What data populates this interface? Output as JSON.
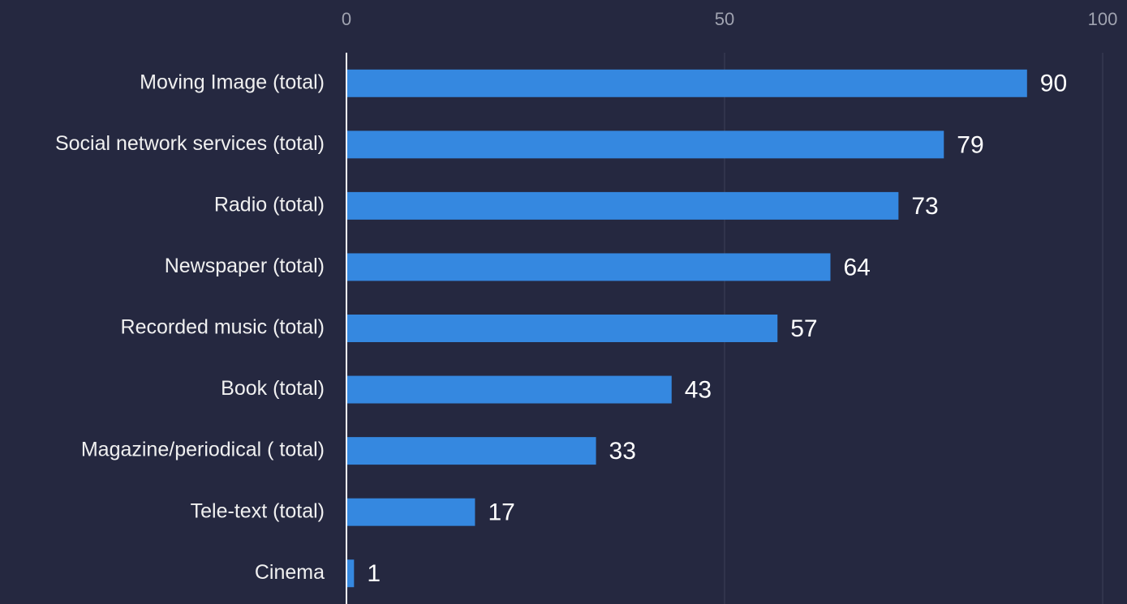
{
  "chart_data": {
    "type": "barh",
    "categories": [
      "Moving Image (total)",
      "Social network services (total)",
      "Radio (total)",
      "Newspaper (total)",
      "Recorded music (total)",
      "Book (total)",
      "Magazine/periodical ( total)",
      "Tele-text (total)",
      "Cinema"
    ],
    "values": [
      90,
      79,
      73,
      64,
      57,
      43,
      33,
      17,
      1
    ],
    "color": "#3588e0",
    "xlim": [
      0,
      100
    ],
    "xticks": [
      0,
      50,
      100
    ],
    "grid": true
  }
}
